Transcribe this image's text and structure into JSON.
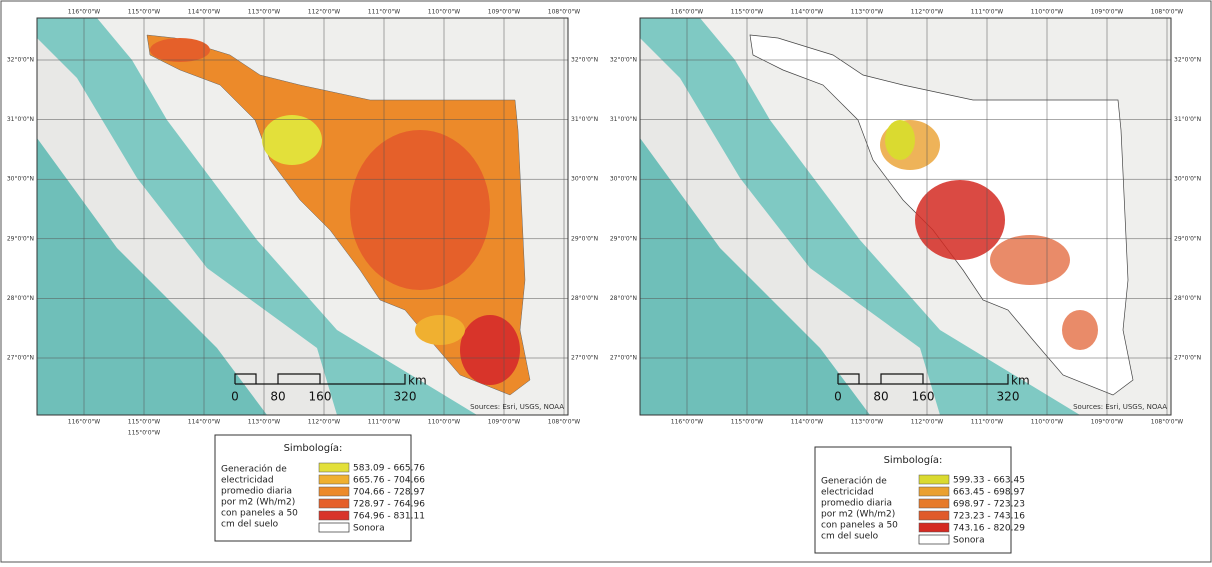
{
  "maps": [
    {
      "lon_labels": [
        "116°0'0\"W",
        "115°0'0\"W",
        "114°0'0\"W",
        "113°0'0\"W",
        "112°0'0\"W",
        "111°0'0\"W",
        "110°0'0\"W",
        "109°0'0\"W",
        "108°0'0\"W"
      ],
      "lat_labels": [
        "32°0'0\"N",
        "31°0'0\"N",
        "30°0'0\"N",
        "29°0'0\"N",
        "28°0'0\"N",
        "27°0'0\"N"
      ],
      "extra_label": "115°0'0\"W",
      "scale": {
        "labels": [
          "0",
          "80",
          "160",
          "320"
        ],
        "unit": "km"
      },
      "sources": "Sources: Esri, USGS, NOAA",
      "legend": {
        "title": "Simbología:",
        "description": [
          "Generación de",
          "electricidad",
          "promedio diaria",
          "por m2 (Wh/m2)",
          "con paneles a 50",
          "cm del suelo"
        ],
        "classes": [
          {
            "label": "583.09 - 665.76",
            "color": "#e3e03a"
          },
          {
            "label": "665.76 - 704.66",
            "color": "#f0b030"
          },
          {
            "label": "704.66 - 728.97",
            "color": "#ec8a2a"
          },
          {
            "label": "728.97 - 764.96",
            "color": "#e5602a"
          },
          {
            "label": "764.96 - 831.11",
            "color": "#d8342a"
          }
        ],
        "boundary_label": "Sonora"
      }
    },
    {
      "lon_labels": [
        "116°0'0\"W",
        "115°0'0\"W",
        "114°0'0\"W",
        "113°0'0\"W",
        "112°0'0\"W",
        "111°0'0\"W",
        "110°0'0\"W",
        "109°0'0\"W",
        "108°0'0\"W"
      ],
      "lat_labels": [
        "32°0'0\"N",
        "31°0'0\"N",
        "30°0'0\"N",
        "29°0'0\"N",
        "28°0'0\"N",
        "27°0'0\"N"
      ],
      "scale": {
        "labels": [
          "0",
          "80",
          "160",
          "320"
        ],
        "unit": "km"
      },
      "sources": "Sources: Esri, USGS, NOAA",
      "legend": {
        "title": "Simbología:",
        "description": [
          "Generación de",
          "electricidad",
          "promedio diaria",
          "por m2 (Wh/m2)",
          "con paneles a 50",
          "cm del suelo"
        ],
        "classes": [
          {
            "label": "599.33 - 663.45",
            "color": "#dada30"
          },
          {
            "label": "663.45 - 698.97",
            "color": "#eaa030"
          },
          {
            "label": "698.97 - 723.23",
            "color": "#e67a2a"
          },
          {
            "label": "723.23 - 743.16",
            "color": "#e05a2a"
          },
          {
            "label": "743.16 - 820.29",
            "color": "#d42a22"
          }
        ],
        "boundary_label": "Sonora"
      }
    }
  ]
}
